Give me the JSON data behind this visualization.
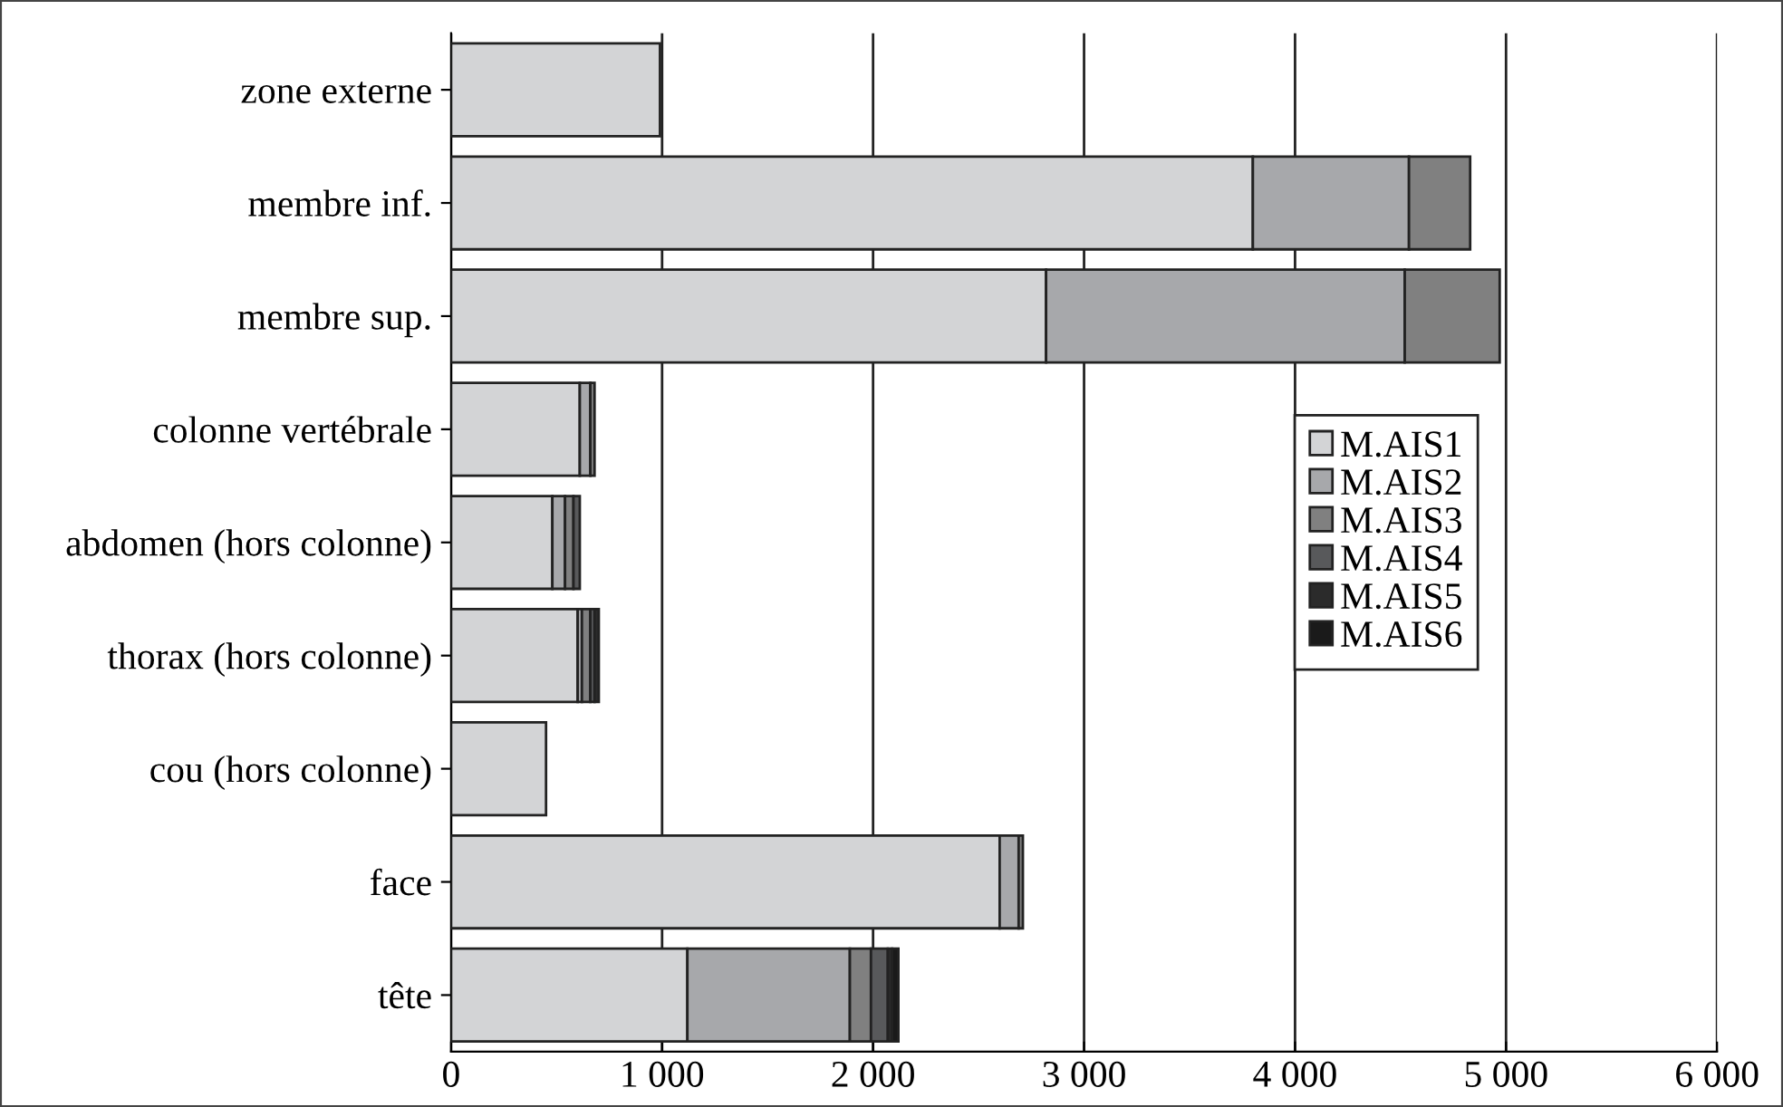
{
  "chart_data": {
    "type": "bar",
    "orientation": "horizontal",
    "stacked": true,
    "categories": [
      "zone externe",
      "membre inf.",
      "membre sup.",
      "colonne vertébrale",
      "abdomen (hors colonne)",
      "thorax (hors colonne)",
      "cou (hors colonne)",
      "face",
      "tête"
    ],
    "series": [
      {
        "name": "M.AIS1",
        "color": "#d3d4d6",
        "values": [
          990,
          3800,
          2820,
          610,
          480,
          600,
          450,
          2600,
          1120
        ]
      },
      {
        "name": "M.AIS2",
        "color": "#a7a8ab",
        "values": [
          null,
          740,
          1700,
          50,
          60,
          20,
          null,
          90,
          770
        ]
      },
      {
        "name": "M.AIS3",
        "color": "#808080",
        "values": [
          null,
          290,
          450,
          20,
          40,
          40,
          null,
          20,
          100
        ]
      },
      {
        "name": "M.AIS4",
        "color": "#58595b",
        "values": [
          null,
          null,
          null,
          null,
          30,
          20,
          null,
          null,
          80
        ]
      },
      {
        "name": "M.AIS5",
        "color": "#2b2b2b",
        "values": [
          null,
          null,
          null,
          null,
          null,
          20,
          null,
          null,
          20
        ]
      },
      {
        "name": "M.AIS6",
        "color": "#1a1a1a",
        "values": [
          null,
          null,
          null,
          null,
          null,
          null,
          null,
          null,
          30
        ]
      }
    ],
    "xlim": [
      0,
      6000
    ],
    "xticks": [
      0,
      {
        "value": 1000,
        "label": "1 000"
      },
      {
        "value": 2000,
        "label": "2 000"
      },
      {
        "value": 3000,
        "label": "3 000"
      },
      {
        "value": 4000,
        "label": "4 000"
      },
      {
        "value": 5000,
        "label": "5 000"
      },
      {
        "value": 6000,
        "label": "6 000"
      }
    ],
    "grid": "x",
    "legend": "right"
  }
}
